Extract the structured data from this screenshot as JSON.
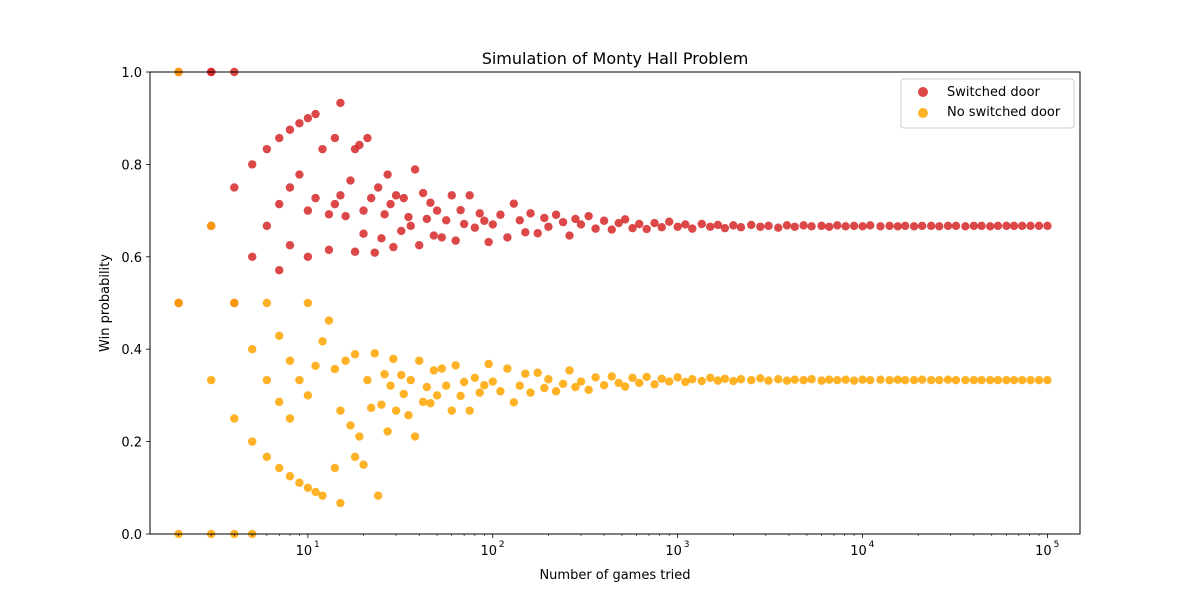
{
  "chart_data": {
    "type": "scatter",
    "title": "Simulation of Monty Hall Problem",
    "xlabel": "Number of games tried",
    "ylabel": "Win probability",
    "xscale": "log",
    "xlim": [
      1.4,
      150000
    ],
    "ylim": [
      0,
      1
    ],
    "x_ticks": [
      10,
      100,
      1000,
      10000,
      100000
    ],
    "x_tick_labels": [
      "10",
      "10",
      "10",
      "10",
      "10"
    ],
    "x_tick_exponents": [
      "1",
      "2",
      "3",
      "4",
      "5"
    ],
    "y_ticks": [
      0,
      0.2,
      0.4,
      0.6,
      0.8,
      1.0
    ],
    "y_tick_labels": [
      "0.0",
      "0.2",
      "0.4",
      "0.6",
      "0.8",
      "1.0"
    ],
    "grid": false,
    "legend_position": "top-right",
    "series": [
      {
        "name": "Switched door",
        "color": "#d62728",
        "x": [
          2,
          2,
          3,
          3,
          3,
          4,
          4,
          4,
          5,
          5,
          6,
          6,
          7,
          7,
          7,
          8,
          8,
          8,
          9,
          9,
          10,
          10,
          10,
          11,
          11,
          12,
          13,
          13,
          14,
          14,
          15,
          15,
          16,
          17,
          18,
          18,
          19,
          20,
          20,
          21,
          22,
          23,
          24,
          25,
          26,
          27,
          28,
          29,
          30,
          32,
          33,
          35,
          36,
          38,
          40,
          42,
          44,
          46,
          48,
          50,
          53,
          56,
          60,
          63,
          67,
          70,
          75,
          80,
          85,
          90,
          95,
          100,
          110,
          120,
          130,
          140,
          150,
          160,
          175,
          190,
          200,
          220,
          240,
          260,
          280,
          300,
          330,
          360,
          400,
          440,
          480,
          520,
          570,
          620,
          680,
          750,
          820,
          900,
          1000,
          1100,
          1200,
          1350,
          1500,
          1650,
          1800,
          2000,
          2200,
          2500,
          2800,
          3100,
          3500,
          3900,
          4300,
          4800,
          5300,
          6000,
          6600,
          7300,
          8100,
          9000,
          10000,
          11000,
          12500,
          14000,
          15500,
          17000,
          19000,
          21000,
          23500,
          26000,
          29000,
          32000,
          36000,
          40000,
          44000,
          49000,
          54000,
          60000,
          66000,
          73000,
          81000,
          90000,
          100000
        ],
        "values": [
          1.0,
          0.5,
          1.0,
          0.667,
          1.0,
          0.75,
          1.0,
          0.5,
          0.8,
          0.6,
          0.833,
          0.667,
          0.857,
          0.714,
          0.571,
          0.875,
          0.75,
          0.625,
          0.889,
          0.778,
          0.9,
          0.7,
          0.6,
          0.909,
          0.727,
          0.833,
          0.692,
          0.615,
          0.857,
          0.714,
          0.933,
          0.733,
          0.688,
          0.765,
          0.833,
          0.611,
          0.842,
          0.65,
          0.7,
          0.857,
          0.727,
          0.609,
          0.75,
          0.64,
          0.692,
          0.778,
          0.714,
          0.621,
          0.733,
          0.656,
          0.727,
          0.686,
          0.667,
          0.789,
          0.625,
          0.738,
          0.682,
          0.717,
          0.646,
          0.7,
          0.642,
          0.679,
          0.733,
          0.635,
          0.701,
          0.671,
          0.733,
          0.663,
          0.694,
          0.678,
          0.632,
          0.67,
          0.691,
          0.642,
          0.715,
          0.679,
          0.653,
          0.694,
          0.651,
          0.684,
          0.665,
          0.691,
          0.675,
          0.646,
          0.682,
          0.67,
          0.688,
          0.661,
          0.678,
          0.659,
          0.673,
          0.681,
          0.662,
          0.671,
          0.66,
          0.673,
          0.664,
          0.676,
          0.665,
          0.67,
          0.661,
          0.671,
          0.665,
          0.669,
          0.662,
          0.668,
          0.664,
          0.669,
          0.665,
          0.667,
          0.663,
          0.668,
          0.665,
          0.668,
          0.666,
          0.667,
          0.665,
          0.668,
          0.666,
          0.667,
          0.666,
          0.668,
          0.666,
          0.667,
          0.666,
          0.667,
          0.666,
          0.667,
          0.667,
          0.666,
          0.667,
          0.667,
          0.666,
          0.667,
          0.667,
          0.666,
          0.667,
          0.667,
          0.667,
          0.667,
          0.667,
          0.667,
          0.667
        ]
      },
      {
        "name": "No switched door",
        "color": "#ffa500",
        "x": [
          2,
          2,
          2,
          3,
          3,
          3,
          4,
          4,
          4,
          5,
          5,
          5,
          6,
          6,
          6,
          7,
          7,
          7,
          8,
          8,
          8,
          9,
          9,
          10,
          10,
          10,
          11,
          11,
          12,
          12,
          13,
          14,
          14,
          15,
          15,
          16,
          17,
          18,
          18,
          19,
          20,
          21,
          22,
          23,
          24,
          25,
          26,
          27,
          28,
          29,
          30,
          32,
          33,
          35,
          36,
          38,
          40,
          42,
          44,
          46,
          48,
          50,
          53,
          56,
          60,
          63,
          67,
          70,
          75,
          80,
          85,
          90,
          95,
          100,
          110,
          120,
          130,
          140,
          150,
          160,
          175,
          190,
          200,
          220,
          240,
          260,
          280,
          300,
          330,
          360,
          400,
          440,
          480,
          520,
          570,
          620,
          680,
          750,
          820,
          900,
          1000,
          1100,
          1200,
          1350,
          1500,
          1650,
          1800,
          2000,
          2200,
          2500,
          2800,
          3100,
          3500,
          3900,
          4300,
          4800,
          5300,
          6000,
          6600,
          7300,
          8100,
          9000,
          10000,
          11000,
          12500,
          14000,
          15500,
          17000,
          19000,
          21000,
          23500,
          26000,
          29000,
          32000,
          36000,
          40000,
          44000,
          49000,
          54000,
          60000,
          66000,
          73000,
          81000,
          90000,
          100000
        ],
        "values": [
          0.0,
          0.5,
          1.0,
          0.0,
          0.333,
          0.667,
          0.0,
          0.25,
          0.5,
          0.0,
          0.2,
          0.4,
          0.167,
          0.333,
          0.5,
          0.143,
          0.286,
          0.429,
          0.125,
          0.25,
          0.375,
          0.111,
          0.333,
          0.1,
          0.3,
          0.5,
          0.091,
          0.364,
          0.083,
          0.417,
          0.462,
          0.143,
          0.357,
          0.067,
          0.267,
          0.375,
          0.235,
          0.167,
          0.389,
          0.211,
          0.15,
          0.333,
          0.273,
          0.391,
          0.083,
          0.28,
          0.346,
          0.222,
          0.321,
          0.379,
          0.267,
          0.344,
          0.303,
          0.257,
          0.333,
          0.211,
          0.375,
          0.286,
          0.318,
          0.283,
          0.354,
          0.3,
          0.358,
          0.321,
          0.267,
          0.365,
          0.299,
          0.329,
          0.267,
          0.338,
          0.306,
          0.322,
          0.368,
          0.33,
          0.309,
          0.358,
          0.285,
          0.321,
          0.347,
          0.306,
          0.349,
          0.316,
          0.335,
          0.309,
          0.325,
          0.354,
          0.318,
          0.33,
          0.312,
          0.339,
          0.322,
          0.341,
          0.327,
          0.319,
          0.338,
          0.327,
          0.34,
          0.324,
          0.336,
          0.33,
          0.339,
          0.329,
          0.335,
          0.331,
          0.338,
          0.332,
          0.336,
          0.331,
          0.335,
          0.333,
          0.337,
          0.332,
          0.335,
          0.332,
          0.334,
          0.333,
          0.335,
          0.332,
          0.334,
          0.333,
          0.334,
          0.332,
          0.334,
          0.333,
          0.334,
          0.333,
          0.334,
          0.333,
          0.333,
          0.334,
          0.333,
          0.333,
          0.334,
          0.333,
          0.333,
          0.333,
          0.333,
          0.333,
          0.333,
          0.333,
          0.333,
          0.333,
          0.333,
          0.333,
          0.333
        ]
      }
    ]
  }
}
